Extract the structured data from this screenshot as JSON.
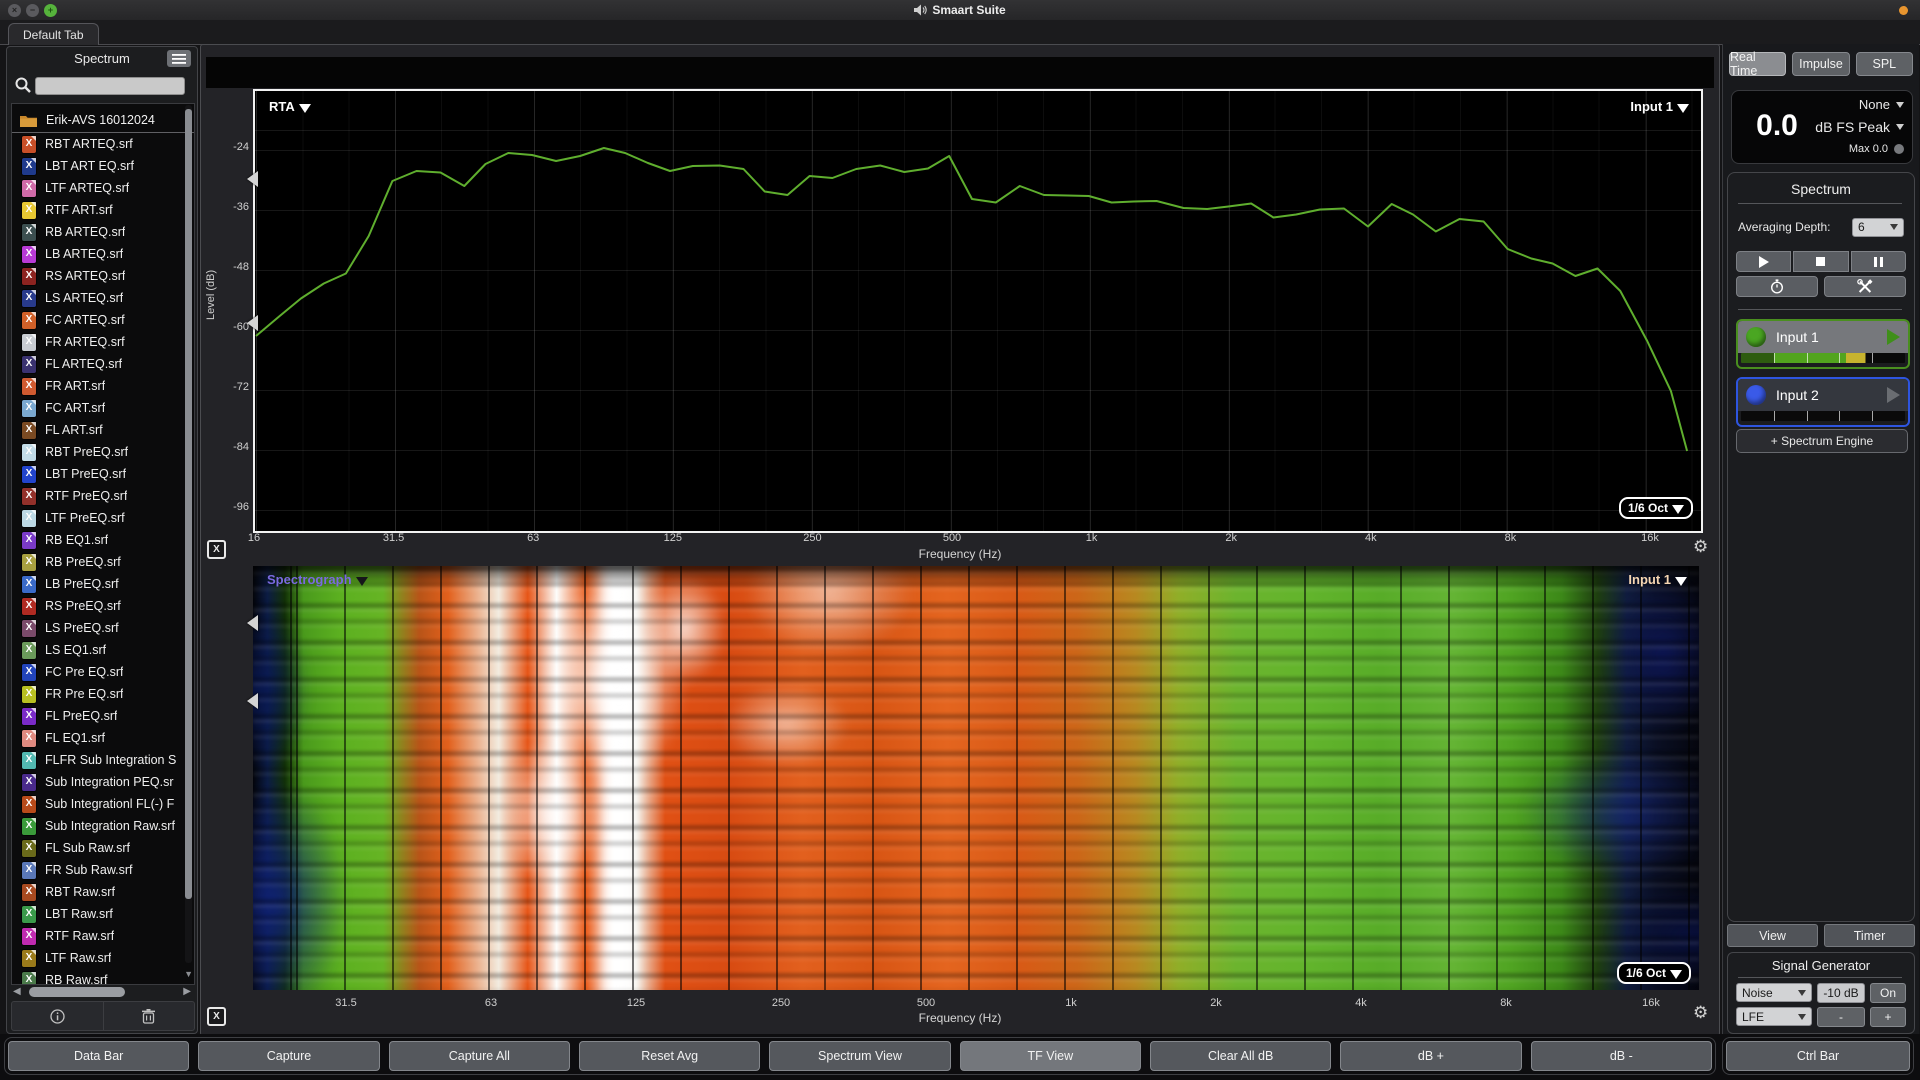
{
  "titlebar": {
    "title": "Smaart Suite",
    "status_dot_color": "#e8952f"
  },
  "tabs": {
    "active": "Default Tab"
  },
  "sidebar": {
    "title": "Spectrum",
    "search_value": "",
    "folder": "Erik-AVS 16012024",
    "files": [
      {
        "name": "RBT ARTEQ.srf",
        "color": "#c84f28"
      },
      {
        "name": "LBT ART EQ.srf",
        "color": "#1f3a8c"
      },
      {
        "name": "LTF ARTEQ.srf",
        "color": "#d06aa8"
      },
      {
        "name": "RTF ART.srf",
        "color": "#e8c832"
      },
      {
        "name": "RB ARTEQ.srf",
        "color": "#3c4f50"
      },
      {
        "name": "LB ARTEQ.srf",
        "color": "#b83ad6"
      },
      {
        "name": "RS ARTEQ.srf",
        "color": "#8c2320"
      },
      {
        "name": "LS ARTEQ.srf",
        "color": "#283a8c"
      },
      {
        "name": "FC ARTEQ.srf",
        "color": "#d06028"
      },
      {
        "name": "FR ARTEQ.srf",
        "color": "#c8ccd2"
      },
      {
        "name": "FL ARTEQ.srf",
        "color": "#3a3270"
      },
      {
        "name": "FR ART.srf",
        "color": "#d05a30"
      },
      {
        "name": "FC ART.srf",
        "color": "#7aa8d0"
      },
      {
        "name": "FL ART.srf",
        "color": "#7a4a22"
      },
      {
        "name": "RBT PreEQ.srf",
        "color": "#c2dce8"
      },
      {
        "name": "LBT PreEQ.srf",
        "color": "#2244cc"
      },
      {
        "name": "RTF PreEQ.srf",
        "color": "#93302a"
      },
      {
        "name": "LTF PreEQ.srf",
        "color": "#bcd8e4"
      },
      {
        "name": "RB EQ1.srf",
        "color": "#7a3ac8"
      },
      {
        "name": "RB PreEQ.srf",
        "color": "#a8a040"
      },
      {
        "name": "LB PreEQ.srf",
        "color": "#3a6ac8"
      },
      {
        "name": "RS PreEQ.srf",
        "color": "#b02a22"
      },
      {
        "name": "LS PreEQ.srf",
        "color": "#7a4a6a"
      },
      {
        "name": "LS EQ1.srf",
        "color": "#6a9a5a"
      },
      {
        "name": "FC Pre EQ.srf",
        "color": "#2244bb"
      },
      {
        "name": "FR Pre EQ.srf",
        "color": "#b8c022"
      },
      {
        "name": "FL PreEQ.srf",
        "color": "#7a2ac8"
      },
      {
        "name": "FL EQ1.srf",
        "color": "#e08a80"
      },
      {
        "name": "FLFR Sub Integration S",
        "color": "#52b8b0"
      },
      {
        "name": "Sub Integration PEQ.sr",
        "color": "#4a2a8c"
      },
      {
        "name": "Sub Integrationl FL(-) F",
        "color": "#b84a1a"
      },
      {
        "name": "Sub Integration Raw.srf",
        "color": "#3a9a3a"
      },
      {
        "name": "FL Sub Raw.srf",
        "color": "#6a6a1a"
      },
      {
        "name": "FR Sub Raw.srf",
        "color": "#5a78b8"
      },
      {
        "name": "RBT Raw.srf",
        "color": "#a84a20"
      },
      {
        "name": "LBT Raw.srf",
        "color": "#3a9a4a"
      },
      {
        "name": "RTF Raw.srf",
        "color": "#c02ab0"
      },
      {
        "name": "LTF Raw.srf",
        "color": "#9a7a1a"
      },
      {
        "name": "RB Raw.srf",
        "color": "#4a7a4a"
      }
    ]
  },
  "charts": {
    "rta": {
      "type_label": "RTA",
      "input_label": "Input 1",
      "banding_label": "1/6 Oct",
      "ylabel": "Level (dB)",
      "xlabel": "Frequency (Hz)",
      "yticks": [
        "-24",
        "-36",
        "-48",
        "-60",
        "-72",
        "-84",
        "-96"
      ],
      "xticks": [
        "16",
        "31.5",
        "63",
        "125",
        "250",
        "500",
        "1k",
        "2k",
        "4k",
        "8k",
        "16k"
      ]
    },
    "spectrograph": {
      "type_label": "Spectrograph",
      "input_label": "Input 1",
      "banding_label": "1/6 Oct",
      "xlabel": "Frequency (Hz)",
      "xticks": [
        "31.5",
        "63",
        "125",
        "250",
        "500",
        "1k",
        "2k",
        "4k",
        "8k",
        "16k"
      ]
    }
  },
  "chart_data": [
    {
      "type": "line",
      "title": "RTA 1/6 octave real-time analyzer trace, Input 1",
      "xlabel": "Frequency (Hz)",
      "ylabel": "Level (dB)",
      "x_scale": "log2",
      "xlim_hz": [
        16,
        20000
      ],
      "ylim": [
        -100,
        -12
      ],
      "grid": true,
      "trace_color": "#5fae2e",
      "series": [
        {
          "name": "Input 1",
          "points_hz_db": [
            [
              16,
              -61
            ],
            [
              18,
              -57
            ],
            [
              20,
              -53.5
            ],
            [
              22.4,
              -50.5
            ],
            [
              25,
              -48.5
            ],
            [
              28,
              -41
            ],
            [
              31.5,
              -30
            ],
            [
              35.5,
              -28
            ],
            [
              40,
              -28.3
            ],
            [
              45,
              -31
            ],
            [
              50,
              -26.6
            ],
            [
              56,
              -24.4
            ],
            [
              63,
              -24.8
            ],
            [
              71,
              -26
            ],
            [
              80,
              -25
            ],
            [
              90,
              -23.4
            ],
            [
              100,
              -24.4
            ],
            [
              112,
              -26.4
            ],
            [
              125,
              -28
            ],
            [
              140,
              -27
            ],
            [
              160,
              -26.9
            ],
            [
              180,
              -27.6
            ],
            [
              200,
              -32.1
            ],
            [
              224,
              -32.8
            ],
            [
              250,
              -29
            ],
            [
              280,
              -29.4
            ],
            [
              315,
              -27.6
            ],
            [
              355,
              -26.9
            ],
            [
              400,
              -28.2
            ],
            [
              450,
              -27.5
            ],
            [
              500,
              -25
            ],
            [
              560,
              -33.6
            ],
            [
              630,
              -34.3
            ],
            [
              710,
              -31
            ],
            [
              800,
              -32.8
            ],
            [
              900,
              -32.9
            ],
            [
              1000,
              -33
            ],
            [
              1120,
              -34.3
            ],
            [
              1250,
              -34.1
            ],
            [
              1400,
              -34
            ],
            [
              1600,
              -35.4
            ],
            [
              1800,
              -35.6
            ],
            [
              2000,
              -35.1
            ],
            [
              2240,
              -34.5
            ],
            [
              2500,
              -37.3
            ],
            [
              2800,
              -36.7
            ],
            [
              3150,
              -35.7
            ],
            [
              3550,
              -35.5
            ],
            [
              4000,
              -39.1
            ],
            [
              4500,
              -34.6
            ],
            [
              5000,
              -36.7
            ],
            [
              5600,
              -40.1
            ],
            [
              6300,
              -37.6
            ],
            [
              7100,
              -38.1
            ],
            [
              8000,
              -43.6
            ],
            [
              9000,
              -45.5
            ],
            [
              10000,
              -46.5
            ],
            [
              11200,
              -49
            ],
            [
              12500,
              -47.5
            ],
            [
              14000,
              -52
            ],
            [
              16000,
              -62
            ],
            [
              18000,
              -72
            ],
            [
              19500,
              -84
            ]
          ]
        }
      ]
    },
    {
      "type": "heatmap",
      "title": "Spectrograph, Input 1, 1/6 octave banding (time vs frequency, color = level)",
      "xlabel": "Frequency (Hz)",
      "x_ticks": [
        "31.5",
        "63",
        "125",
        "250",
        "500",
        "1k",
        "2k",
        "4k",
        "8k",
        "16k"
      ],
      "palette_low_to_high": [
        "black",
        "dark blue",
        "blue",
        "green",
        "orange",
        "red",
        "white"
      ],
      "description": "Hot (white/red) energy 60–400 Hz with a bright white column near 160–200 Hz; orange through mids; green 2k–12k; dark blue/black at extreme lows and above 14k",
      "gradient_stops": [
        [
          "0%",
          "#04050a"
        ],
        [
          "1%",
          "#0c1c44"
        ],
        [
          "2.2%",
          "#123007"
        ],
        [
          "3.5%",
          "#4a9a1c"
        ],
        [
          "6%",
          "#5cb020"
        ],
        [
          "9%",
          "#66b424"
        ],
        [
          "11.5%",
          "#b85418"
        ],
        [
          "13.5%",
          "#e2601c"
        ],
        [
          "17%",
          "#f2ece0"
        ],
        [
          "19%",
          "#e65517"
        ],
        [
          "21%",
          "#fdfdfb"
        ],
        [
          "23%",
          "#ea5a18"
        ],
        [
          "25%",
          "#ffffff"
        ],
        [
          "26.5%",
          "#f0ece2"
        ],
        [
          "28.5%",
          "#e05014"
        ],
        [
          "33%",
          "#d84b12"
        ],
        [
          "38%",
          "#e2601e"
        ],
        [
          "43%",
          "#d85514"
        ],
        [
          "48%",
          "#e4651f"
        ],
        [
          "53%",
          "#d85a16"
        ],
        [
          "57%",
          "#cc6618"
        ],
        [
          "61%",
          "#b88820"
        ],
        [
          "64%",
          "#90ae28"
        ],
        [
          "68%",
          "#6cb42e"
        ],
        [
          "73%",
          "#62b42c"
        ],
        [
          "78%",
          "#58ac28"
        ],
        [
          "83%",
          "#64b434"
        ],
        [
          "87%",
          "#50a422"
        ],
        [
          "90.5%",
          "#3c8818"
        ],
        [
          "93%",
          "#1e3e10"
        ],
        [
          "95%",
          "#101c3e"
        ],
        [
          "97%",
          "#0a0f24"
        ],
        [
          "100%",
          "#05060e"
        ]
      ]
    }
  ],
  "right_panel": {
    "modes": [
      "Real Time",
      "Impulse",
      "SPL"
    ],
    "active_mode": "Real Time",
    "meter": {
      "source": "None",
      "value": "0.0",
      "unit": "dB FS Peak",
      "max_label": "Max 0.0"
    },
    "spectrum": {
      "title": "Spectrum",
      "averaging_label": "Averaging Depth:",
      "averaging_value": "6",
      "inputs": [
        {
          "label": "Input 1",
          "border": "#4a8f1f",
          "bg": "#76787c",
          "dot": "#4aa622",
          "play": "#3f8f1a",
          "meter_segments": [
            [
              "#2e5c10",
              0,
              20
            ],
            [
              "#52a41e",
              20,
              64
            ],
            [
              "#c7b32e",
              64,
              76
            ],
            [
              "#0a0a0a",
              76,
              100
            ]
          ]
        },
        {
          "label": "Input 2",
          "border": "#2e55e0",
          "bg": "#34373e",
          "dot": "#3a5ae8",
          "play": "#6a6d72",
          "meter_segments": [
            [
              "#0a0a0a",
              0,
              100
            ]
          ]
        }
      ],
      "add_engine_label": "+ Spectrum Engine"
    },
    "view_label": "View",
    "timer_label": "Timer",
    "signal_generator": {
      "title": "Signal Generator",
      "source": "Noise",
      "level": "-10 dB",
      "power": "On",
      "channel": "LFE",
      "minus": "-",
      "plus": "+"
    }
  },
  "bottom_bar": {
    "buttons": [
      "Data Bar",
      "Capture",
      "Capture All",
      "Reset Avg",
      "Spectrum View",
      "TF View",
      "Clear All dB",
      "dB +",
      "dB -",
      "Ctrl Bar"
    ],
    "active": "TF View"
  }
}
